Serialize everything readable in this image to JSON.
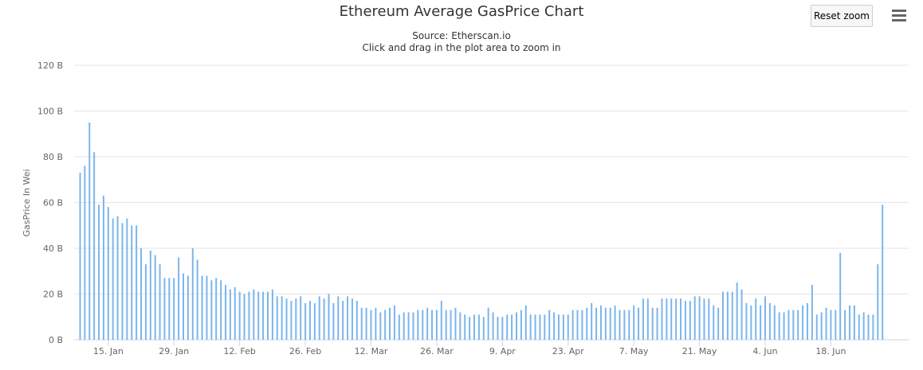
{
  "chart_data": {
    "type": "bar",
    "title": "Ethereum Average GasPrice Chart",
    "subtitle_lines": [
      "Source: Etherscan.io",
      "Click and drag in the plot area to zoom in"
    ],
    "ylabel": "GasPrice In Wei",
    "ylim": [
      0,
      120
    ],
    "y_unit": "B",
    "yticks": [
      "0 B",
      "20 B",
      "40 B",
      "60 B",
      "80 B",
      "100 B",
      "120 B"
    ],
    "ytick_values": [
      0,
      20,
      40,
      60,
      80,
      100,
      120
    ],
    "xticks": [
      "15. Jan",
      "29. Jan",
      "12. Feb",
      "26. Feb",
      "12. Mar",
      "26. Mar",
      "9. Apr",
      "23. Apr",
      "7. May",
      "21. May",
      "4. Jun",
      "18. Jun"
    ],
    "xtick_day_index": [
      6,
      20,
      34,
      48,
      62,
      76,
      90,
      104,
      118,
      132,
      146,
      160
    ],
    "x_start": "2018-01-09",
    "grid": true,
    "legend": "none",
    "color": "#7cb5ec",
    "values": [
      73,
      76,
      95,
      82,
      59,
      63,
      58,
      53,
      54,
      51,
      53,
      50,
      50,
      40,
      33,
      39,
      37,
      33,
      27,
      27,
      27,
      36,
      29,
      28,
      40,
      35,
      28,
      28,
      26,
      27,
      26,
      24,
      22,
      23,
      21,
      20,
      21,
      22,
      21,
      21,
      21,
      22,
      19,
      19,
      18,
      17,
      18,
      19,
      16,
      17,
      16,
      19,
      18,
      20,
      16,
      19,
      17,
      19,
      18,
      17,
      14,
      14,
      13,
      14,
      12,
      13,
      14,
      15,
      11,
      12,
      12,
      12,
      13,
      13,
      14,
      13,
      13,
      17,
      13,
      13,
      14,
      12,
      11,
      10,
      11,
      11,
      10,
      14,
      12,
      10,
      10,
      11,
      11,
      12,
      13,
      15,
      11,
      11,
      11,
      11,
      13,
      12,
      11,
      11,
      11,
      13,
      13,
      13,
      14,
      16,
      14,
      15,
      14,
      14,
      15,
      13,
      13,
      13,
      15,
      14,
      18,
      18,
      14,
      14,
      18,
      18,
      18,
      18,
      18,
      17,
      17,
      19,
      19,
      18,
      18,
      15,
      14,
      21,
      21,
      21,
      25,
      22,
      16,
      15,
      18,
      15,
      19,
      16,
      15,
      12,
      12,
      13,
      13,
      13,
      15,
      16,
      24,
      11,
      12,
      14,
      13,
      13,
      38,
      13,
      15,
      15,
      11,
      12,
      11,
      11,
      33,
      59
    ]
  },
  "toolbar": {
    "reset_zoom_label": "Reset zoom",
    "menu_icon": "hamburger-menu-icon"
  }
}
